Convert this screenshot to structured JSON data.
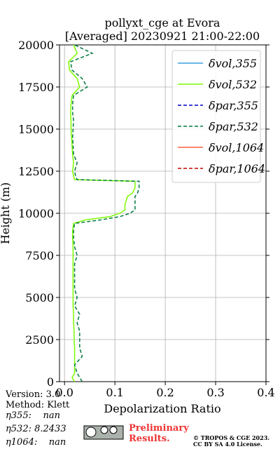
{
  "chart_data": {
    "type": "profile",
    "title": "pollyxt_cge at Evora",
    "subtitle": "[Averaged] 20230921 21:00-22:00",
    "xlabel": "Depolarization Ratio",
    "ylabel": "Height (m)",
    "xlim": [
      -0.01,
      0.4
    ],
    "ylim": [
      0,
      20000
    ],
    "xticks": [
      {
        "value": 0,
        "label": "0.0"
      },
      0.1,
      0.2,
      0.3,
      0.4
    ],
    "yticks": [
      0,
      2500,
      5000,
      7500,
      10000,
      12500,
      15000,
      17500,
      20000
    ],
    "grid": true,
    "legend": "upper right",
    "y": [
      0,
      250,
      500,
      1000,
      1500,
      2000,
      2500,
      3000,
      3500,
      4000,
      4500,
      5000,
      5500,
      6000,
      6500,
      7000,
      7500,
      8000,
      8500,
      9000,
      9400,
      9600,
      9800,
      10000,
      10200,
      10500,
      11000,
      11200,
      11500,
      11900,
      12000,
      12200,
      12500,
      13000,
      13500,
      14000,
      14500,
      15000,
      15500,
      16000,
      16500,
      17000,
      17500,
      18000,
      18500,
      19000,
      19500,
      20000
    ],
    "series": [
      {
        "name": "δvol,355",
        "color": "#3a9ee0",
        "style": "solid",
        "values": [
          null,
          null,
          null,
          null,
          null,
          null,
          null,
          null,
          null,
          null,
          null,
          null,
          null,
          null,
          null,
          null,
          null,
          null,
          null,
          null,
          null,
          null,
          null,
          null,
          null,
          null,
          null,
          null,
          null,
          null,
          null,
          null,
          null,
          null,
          null,
          null,
          null,
          null,
          null,
          null,
          null,
          null,
          null,
          null,
          null,
          null,
          null,
          null
        ]
      },
      {
        "name": "δvol,532",
        "color": "#7cfc00",
        "style": "solid",
        "values": [
          0.02,
          0.015,
          0.02,
          0.02,
          0.02,
          0.02,
          0.019,
          0.019,
          0.018,
          0.018,
          0.017,
          0.017,
          0.017,
          0.017,
          0.017,
          0.017,
          0.017,
          0.017,
          0.016,
          0.016,
          0.018,
          0.04,
          0.09,
          0.11,
          0.12,
          0.12,
          0.125,
          0.135,
          0.14,
          0.14,
          0.02,
          0.018,
          0.016,
          0.018,
          0.016,
          0.015,
          0.014,
          0.013,
          0.013,
          0.012,
          0.013,
          0.015,
          0.03,
          0.025,
          0.01,
          0.008,
          0.025,
          0.018
        ]
      },
      {
        "name": "δpar,355",
        "color": "#0000cc",
        "style": "dashed",
        "values": [
          null,
          null,
          null,
          null,
          null,
          null,
          null,
          null,
          null,
          null,
          null,
          null,
          null,
          null,
          null,
          null,
          null,
          null,
          null,
          null,
          null,
          null,
          null,
          null,
          null,
          null,
          null,
          null,
          null,
          null,
          null,
          null,
          null,
          null,
          null,
          null,
          null,
          null,
          null,
          null,
          null,
          null,
          null,
          null,
          null,
          null,
          null,
          null
        ]
      },
      {
        "name": "δpar,532",
        "color": "#007a3d",
        "style": "dashed",
        "values": [
          0.035,
          0.03,
          0.025,
          0.02,
          0.035,
          0.03,
          0.03,
          0.03,
          0.025,
          0.03,
          0.02,
          0.025,
          0.02,
          0.02,
          0.02,
          0.02,
          0.025,
          0.02,
          0.018,
          0.018,
          0.02,
          0.07,
          0.11,
          0.13,
          0.14,
          0.14,
          0.14,
          0.145,
          0.148,
          0.148,
          0.025,
          0.022,
          0.02,
          0.025,
          0.018,
          0.017,
          0.016,
          0.017,
          0.018,
          0.016,
          0.016,
          0.018,
          0.045,
          0.035,
          0.015,
          0.012,
          0.055,
          0.02
        ]
      },
      {
        "name": "δvol,1064",
        "color": "#ff6040",
        "style": "solid",
        "values": [
          null,
          null,
          null,
          null,
          null,
          null,
          null,
          null,
          null,
          null,
          null,
          null,
          null,
          null,
          null,
          null,
          null,
          null,
          null,
          null,
          null,
          null,
          null,
          null,
          null,
          null,
          null,
          null,
          null,
          null,
          null,
          null,
          null,
          null,
          null,
          null,
          null,
          null,
          null,
          null,
          null,
          null,
          null,
          null,
          null,
          null,
          null,
          null
        ]
      },
      {
        "name": "δpar,1064",
        "color": "#cc0000",
        "style": "dashed",
        "values": [
          null,
          null,
          null,
          null,
          null,
          null,
          null,
          null,
          null,
          null,
          null,
          null,
          null,
          null,
          null,
          null,
          null,
          null,
          null,
          null,
          null,
          null,
          null,
          null,
          null,
          null,
          null,
          null,
          null,
          null,
          null,
          null,
          null,
          null,
          null,
          null,
          null,
          null,
          null,
          null,
          null,
          null,
          null,
          null,
          null,
          null,
          null,
          null
        ]
      }
    ],
    "annotations": [
      "Version: 3.0",
      "Method: Klett",
      "η355:    nan",
      "η532: 8.2433",
      "η1064:    nan",
      "Preliminary",
      "Results.",
      "© TROPOS & CGE 2023.",
      "CC BY SA 4.0 License."
    ]
  }
}
